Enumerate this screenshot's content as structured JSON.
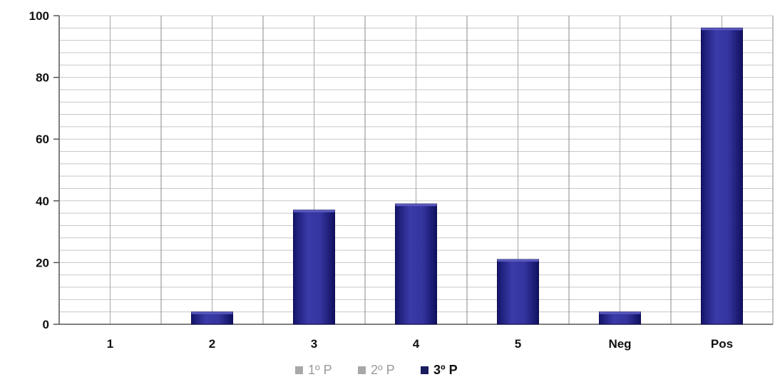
{
  "chart_data": {
    "type": "bar",
    "title": "",
    "xlabel": "",
    "ylabel": "",
    "categories": [
      "1",
      "2",
      "3",
      "4",
      "5",
      "Neg",
      "Pos"
    ],
    "series": [
      {
        "name": "1º P",
        "values": [
          0,
          0,
          0,
          0,
          0,
          0,
          0
        ],
        "color": "#9a9a9a",
        "active": false
      },
      {
        "name": "2º P",
        "values": [
          0,
          0,
          0,
          0,
          0,
          0,
          0
        ],
        "color": "#9a9a9a",
        "active": false
      },
      {
        "name": "3º P",
        "values": [
          0,
          4,
          37,
          39,
          21,
          4,
          96
        ],
        "color": "#1f1f8a",
        "active": true
      }
    ],
    "ylim": [
      0,
      100
    ],
    "yticks": [
      0,
      20,
      40,
      60,
      80,
      100
    ],
    "grid": true,
    "legend_position": "bottom-center"
  }
}
